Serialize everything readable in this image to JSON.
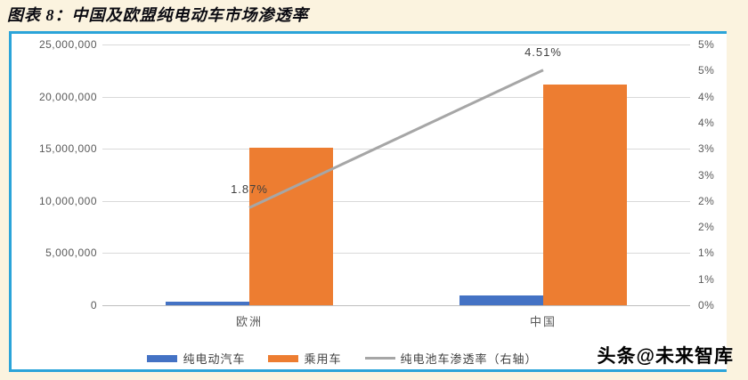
{
  "title": "图表 8：中国及欧盟纯电动车市场渗透率",
  "watermark": "头条@未来智库",
  "legend": {
    "items": [
      {
        "label": "纯电动汽车",
        "type": "bar",
        "color": "#4472C4"
      },
      {
        "label": "乘用车",
        "type": "bar",
        "color": "#ED7D31"
      },
      {
        "label": "纯电池车渗透率（右轴）",
        "type": "line",
        "color": "#A6A6A6"
      }
    ]
  },
  "colors": {
    "page_background": "#fbf3df",
    "panel_background": "#ffffff",
    "panel_border_blue": "#2ba4d9",
    "bar_blue": "#4472C4",
    "bar_orange": "#ED7D31",
    "line_gray": "#A6A6A6",
    "gridline": "#d9d9d9",
    "axis_text": "#595959"
  },
  "chart_data": {
    "type": "bar",
    "subtype": "dual-axis combo: clustered bars (left axis) + line (right axis)",
    "title": "中国及欧盟纯电动车市场渗透率",
    "categories": [
      "欧洲",
      "中国"
    ],
    "series": [
      {
        "name": "纯电动汽车",
        "type": "bar",
        "axis": "left",
        "color": "#4472C4",
        "values": [
          380000,
          950000
        ]
      },
      {
        "name": "乘用车",
        "type": "bar",
        "axis": "left",
        "color": "#ED7D31",
        "values": [
          15100000,
          21200000
        ]
      },
      {
        "name": "纯电池车渗透率（右轴）",
        "type": "line",
        "axis": "right",
        "color": "#A6A6A6",
        "values": [
          1.87,
          4.51
        ],
        "data_labels": [
          "1.87%",
          "4.51%"
        ]
      }
    ],
    "left_axis": {
      "min": 0,
      "max": 25000000,
      "step": 5000000,
      "labels_top_to_bottom": [
        "25,000,000",
        "20,000,000",
        "15,000,000",
        "10,000,000",
        "5,000,000",
        "0"
      ]
    },
    "right_axis": {
      "min": 0,
      "max": 5,
      "step": 0.5,
      "unit": "%",
      "labels_top_to_bottom": [
        "5%",
        "5%",
        "4%",
        "4%",
        "3%",
        "3%",
        "2%",
        "2%",
        "1%",
        "1%",
        "0%"
      ]
    },
    "grid": true,
    "legend_position": "bottom"
  }
}
